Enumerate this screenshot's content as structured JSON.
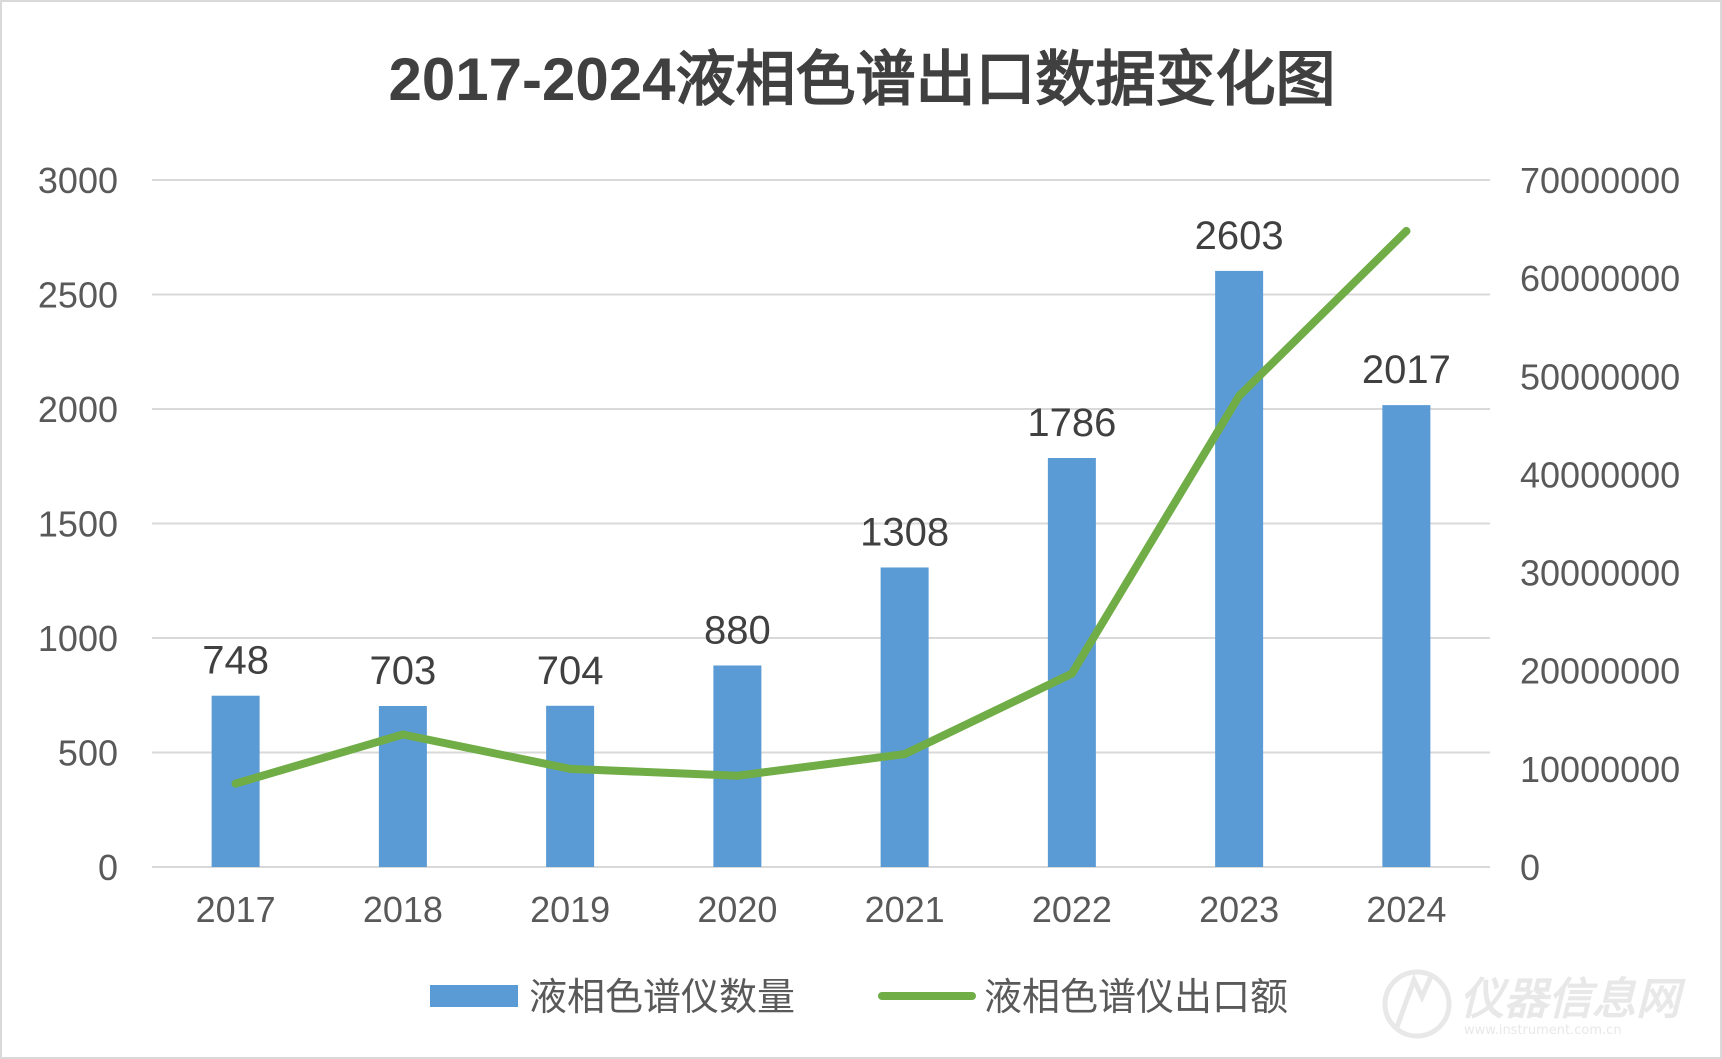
{
  "chart_data": {
    "type": "bar",
    "title": "2017-2024液相色谱出口数据变化图",
    "categories": [
      "2017",
      "2018",
      "2019",
      "2020",
      "2021",
      "2022",
      "2023",
      "2024"
    ],
    "series": [
      {
        "name": "液相色谱仪数量",
        "type": "bar",
        "axis": "left",
        "color": "#5b9bd5",
        "values": [
          748,
          703,
          704,
          880,
          1308,
          1786,
          2603,
          2017
        ],
        "data_labels": [
          "748",
          "703",
          "704",
          "880",
          "1308",
          "1786",
          "2603",
          "2017"
        ]
      },
      {
        "name": "液相色谱仪出口额",
        "type": "line",
        "axis": "right",
        "color": "#70ad47",
        "values": [
          8500000,
          13500000,
          10000000,
          9300000,
          11500000,
          19700000,
          48000000,
          64800000
        ]
      }
    ],
    "y_left": {
      "min": 0,
      "max": 3000,
      "ticks": [
        "0",
        "500",
        "1000",
        "1500",
        "2000",
        "2500",
        "3000"
      ]
    },
    "y_right": {
      "min": 0,
      "max": 70000000,
      "ticks": [
        "0",
        "10000000",
        "20000000",
        "30000000",
        "40000000",
        "50000000",
        "60000000",
        "70000000"
      ]
    },
    "grid": true,
    "legend_position": "bottom",
    "colors": {
      "gridline": "#d9d9d9",
      "axis": "#d9d9d9"
    }
  },
  "watermark": {
    "text": "仪器信息网",
    "sub": "www.instrument.com.cn",
    "icon": "instrument-logo-icon"
  }
}
